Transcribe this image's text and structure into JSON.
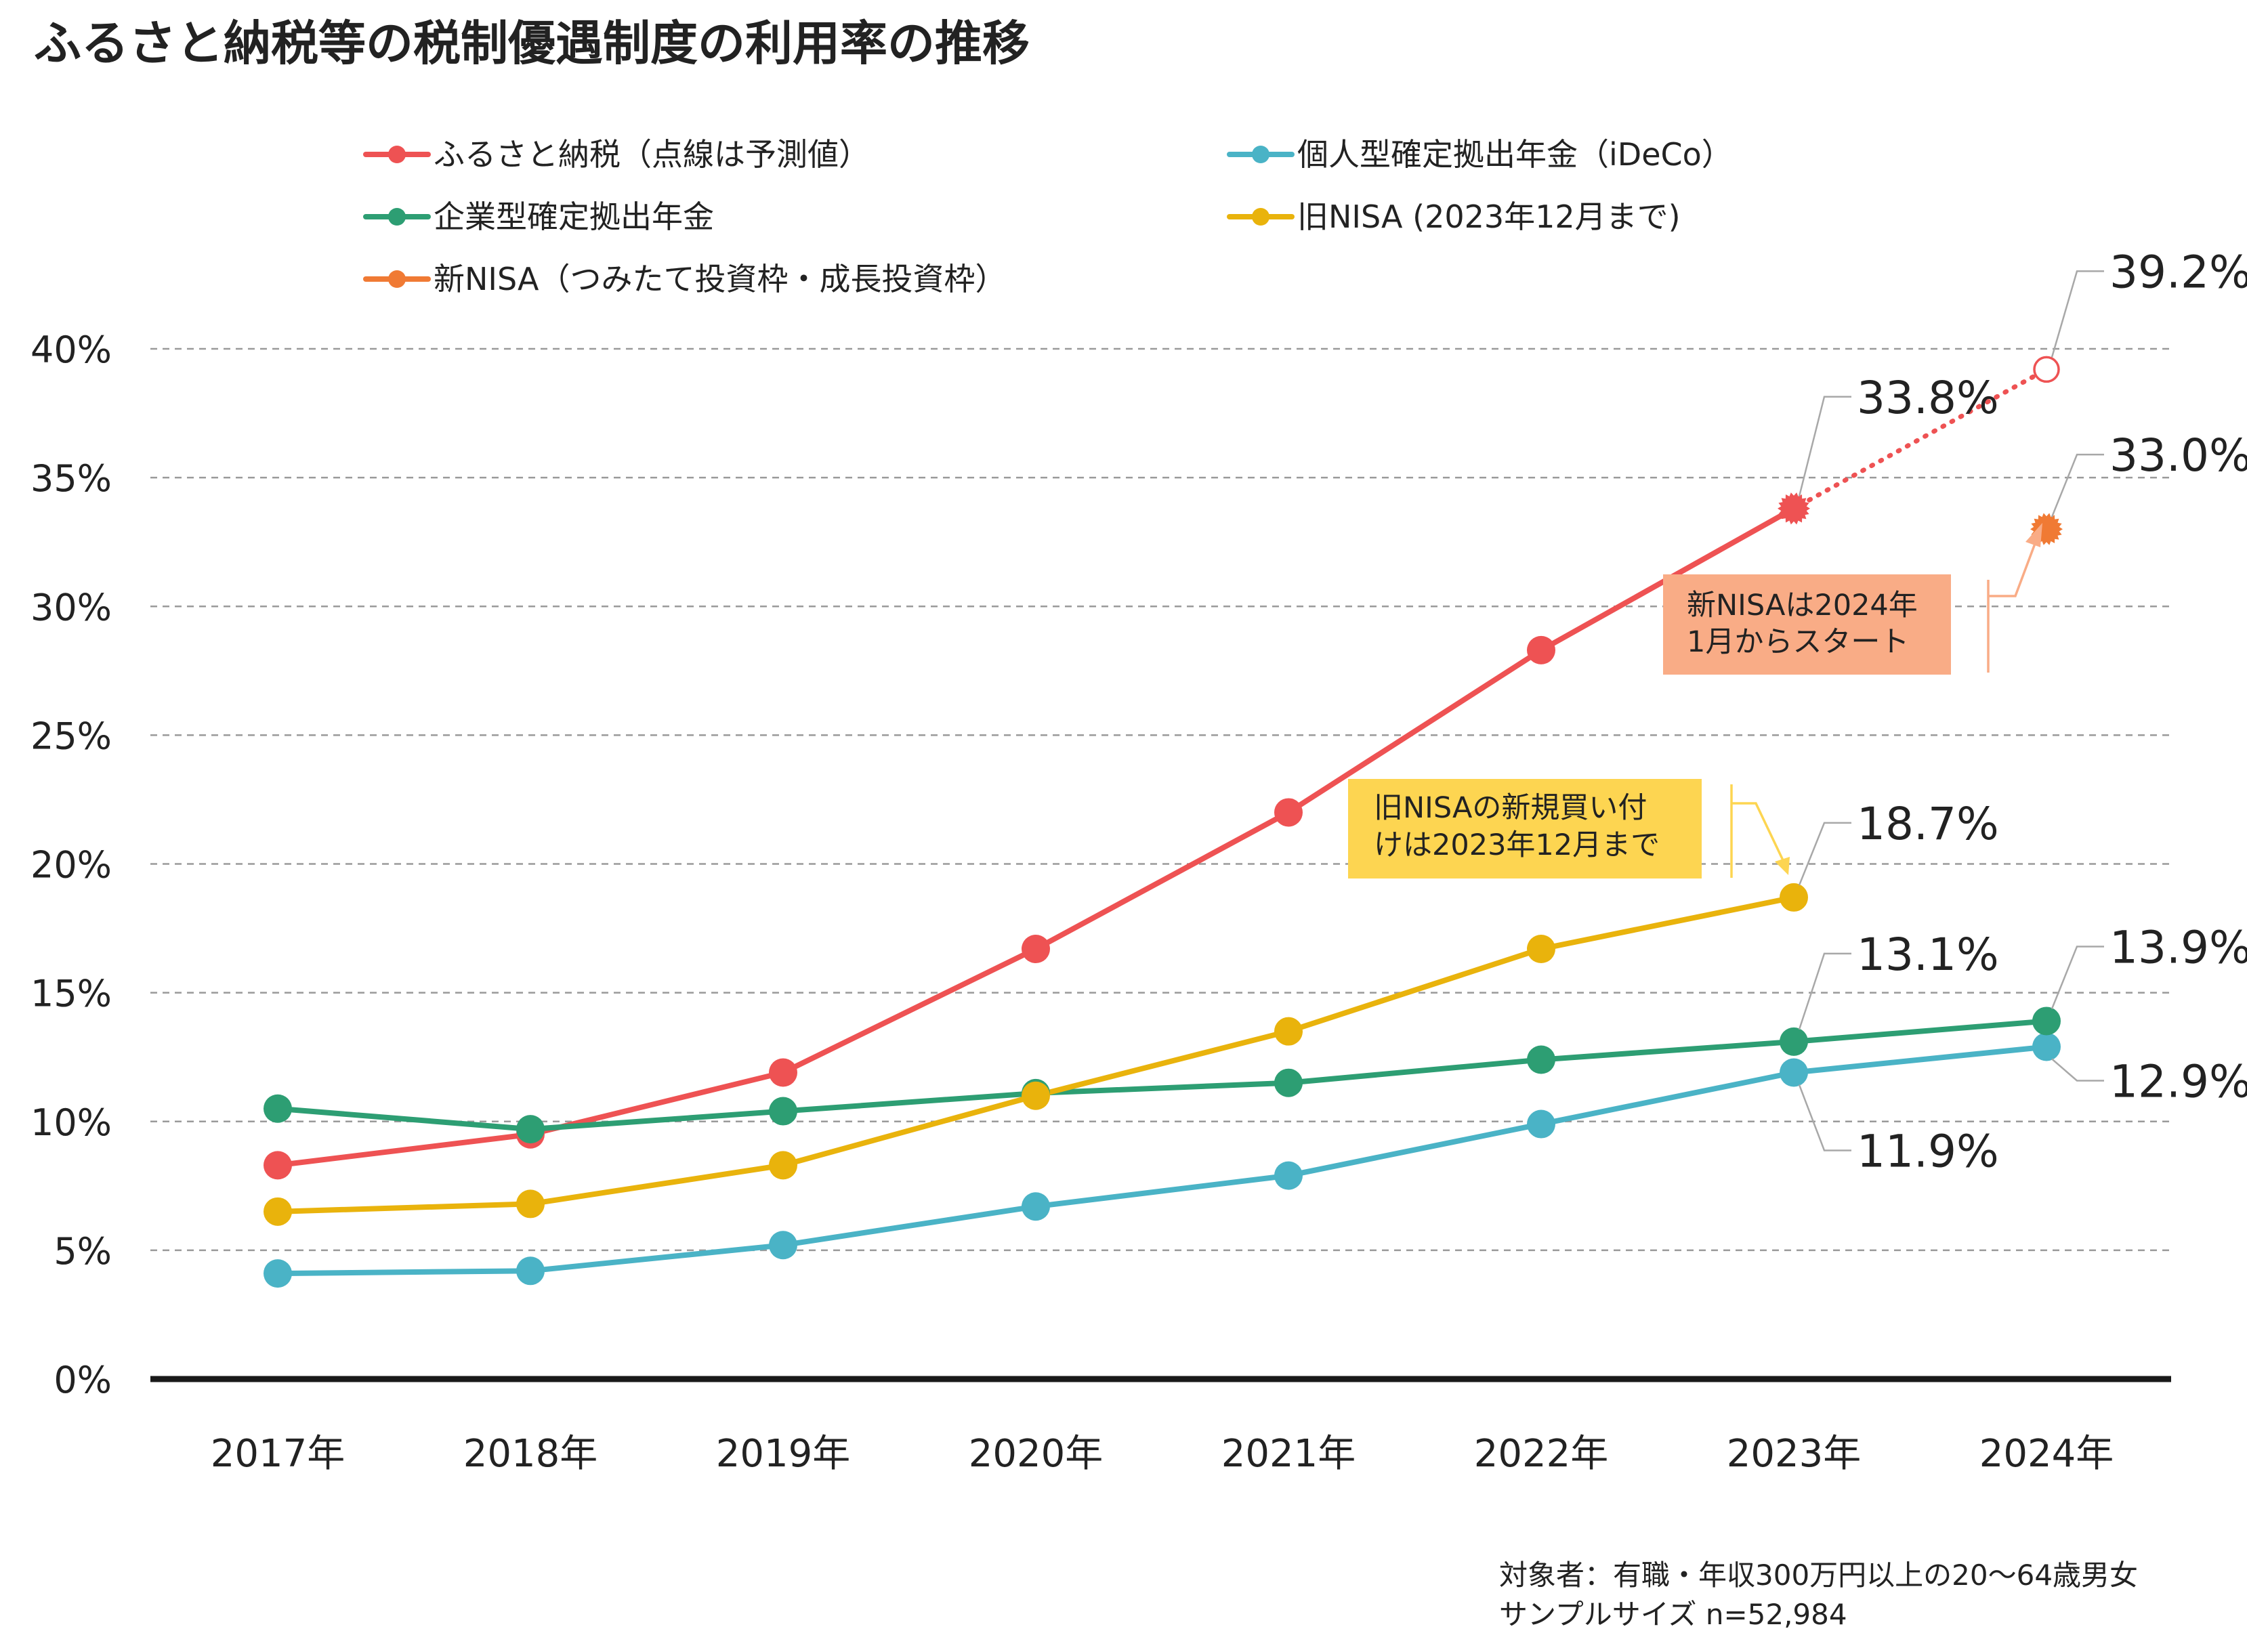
{
  "chart_data": {
    "type": "line",
    "title": "ふるさと納税等の税制優遇制度の利用率の推移",
    "categories": [
      "2017年",
      "2018年",
      "2019年",
      "2020年",
      "2021年",
      "2022年",
      "2023年",
      "2024年"
    ],
    "ylim": [
      0,
      40
    ],
    "yticks": [
      0,
      5,
      10,
      15,
      20,
      25,
      30,
      35,
      40
    ],
    "ytick_labels": [
      "0%",
      "5%",
      "10%",
      "15%",
      "20%",
      "25%",
      "30%",
      "35%",
      "40%"
    ],
    "grid": true,
    "legend_position": "top",
    "series": [
      {
        "name": "ふるさと納税（点線は予測値）",
        "color": "#ee5253",
        "values": [
          8.3,
          9.5,
          11.9,
          16.7,
          22.0,
          28.3,
          33.8,
          null
        ],
        "forecast": [
          null,
          null,
          null,
          null,
          null,
          null,
          33.8,
          39.2
        ]
      },
      {
        "name": "個人型確定拠出年金（iDeCo）",
        "color": "#4ab3c6",
        "values": [
          4.1,
          4.2,
          5.2,
          6.7,
          7.9,
          9.9,
          11.9,
          12.9
        ]
      },
      {
        "name": "企業型確定拠出年金",
        "color": "#2d9e73",
        "values": [
          10.5,
          9.7,
          10.4,
          11.1,
          11.5,
          12.4,
          13.1,
          13.9
        ]
      },
      {
        "name": "旧NISA (2023年12月まで)",
        "color": "#e9b30c",
        "values": [
          6.5,
          6.8,
          8.3,
          11.0,
          13.5,
          16.7,
          18.7,
          null
        ]
      },
      {
        "name": "新NISA（つみたて投資枠・成長投資枠）",
        "color": "#f07a34",
        "values": [
          null,
          null,
          null,
          null,
          null,
          null,
          null,
          33.0
        ]
      }
    ],
    "data_labels": [
      {
        "text": "39.2%",
        "series": 0,
        "category": "2024年"
      },
      {
        "text": "33.8%",
        "series": 0,
        "category": "2023年"
      },
      {
        "text": "33.0%",
        "series": 4,
        "category": "2024年"
      },
      {
        "text": "18.7%",
        "series": 3,
        "category": "2023年"
      },
      {
        "text": "13.1%",
        "series": 2,
        "category": "2023年"
      },
      {
        "text": "13.9%",
        "series": 2,
        "category": "2024年"
      },
      {
        "text": "12.9%",
        "series": 1,
        "category": "2024年"
      },
      {
        "text": "11.9%",
        "series": 1,
        "category": "2023年"
      }
    ],
    "annotations": [
      {
        "lines": [
          "新NISAは2024年",
          "1月からスタート"
        ],
        "color": "#f9ac86"
      },
      {
        "lines": [
          "旧NISAの新規買い付",
          "けは2023年12月まで"
        ],
        "color": "#fdd551"
      }
    ],
    "footnote": [
      "対象者：有職・年収300万円以上の20～64歳男女",
      "サンプルサイズ n=52,984"
    ]
  }
}
